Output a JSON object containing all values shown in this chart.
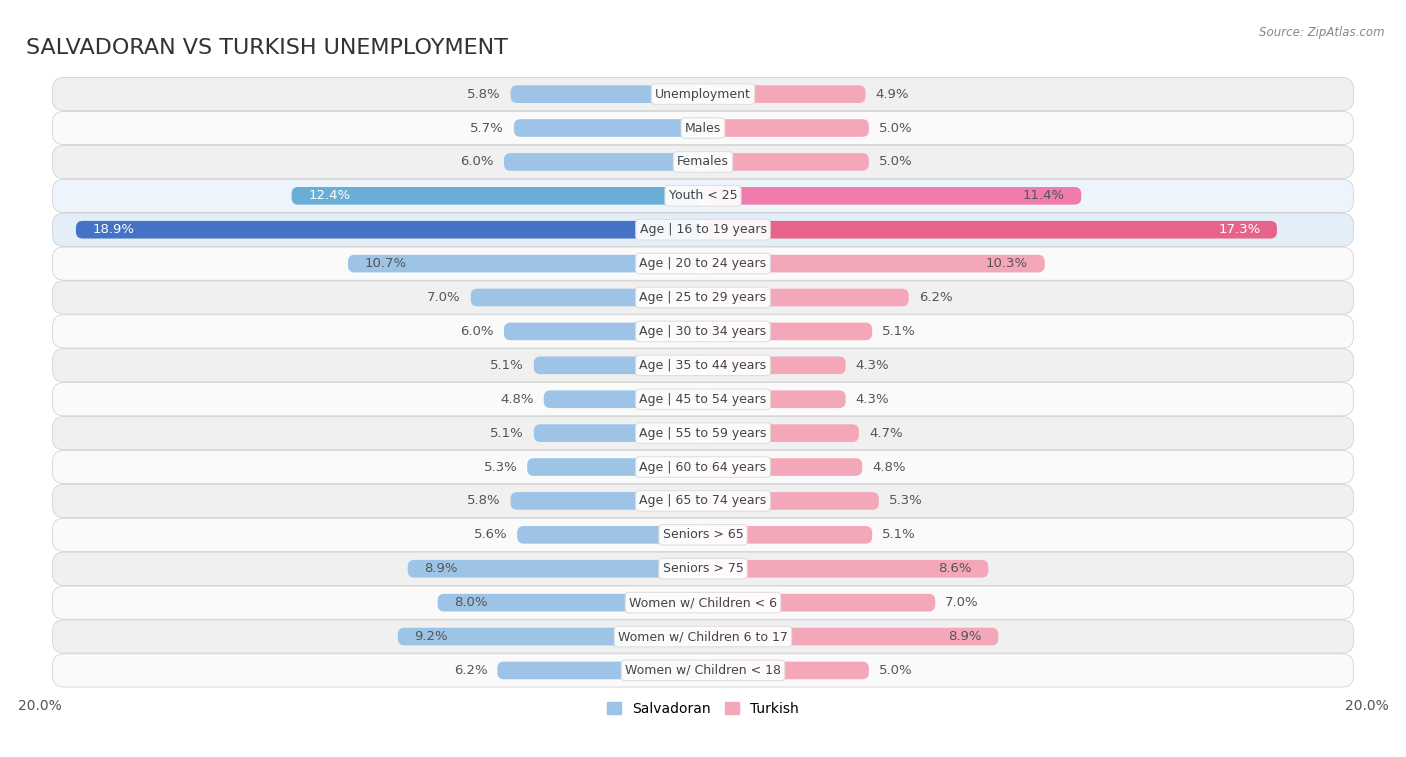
{
  "title": "SALVADORAN VS TURKISH UNEMPLOYMENT",
  "source": "Source: ZipAtlas.com",
  "categories": [
    "Unemployment",
    "Males",
    "Females",
    "Youth < 25",
    "Age | 16 to 19 years",
    "Age | 20 to 24 years",
    "Age | 25 to 29 years",
    "Age | 30 to 34 years",
    "Age | 35 to 44 years",
    "Age | 45 to 54 years",
    "Age | 55 to 59 years",
    "Age | 60 to 64 years",
    "Age | 65 to 74 years",
    "Seniors > 65",
    "Seniors > 75",
    "Women w/ Children < 6",
    "Women w/ Children 6 to 17",
    "Women w/ Children < 18"
  ],
  "salvadoran": [
    5.8,
    5.7,
    6.0,
    12.4,
    18.9,
    10.7,
    7.0,
    6.0,
    5.1,
    4.8,
    5.1,
    5.3,
    5.8,
    5.6,
    8.9,
    8.0,
    9.2,
    6.2
  ],
  "turkish": [
    4.9,
    5.0,
    5.0,
    11.4,
    17.3,
    10.3,
    6.2,
    5.1,
    4.3,
    4.3,
    4.7,
    4.8,
    5.3,
    5.1,
    8.6,
    7.0,
    8.9,
    5.0
  ],
  "salvadoran_color_normal": "#9dc3e6",
  "turkish_color_normal": "#f4a7b9",
  "salvadoran_color_medium": "#6aaed6",
  "turkish_color_medium": "#f07bad",
  "salvadoran_color_strong": "#4472c4",
  "turkish_color_strong": "#e8638c",
  "row_bg_light": "#f5f5f5",
  "row_bg_dark": "#e8e8e8",
  "row_bg_highlight": "#dce8f5",
  "axis_limit": 20.0,
  "bar_height": 0.52,
  "label_fontsize": 9.5,
  "category_fontsize": 9,
  "title_fontsize": 16,
  "legend_fontsize": 10,
  "label_color_normal": "#555555",
  "label_color_white": "#ffffff"
}
